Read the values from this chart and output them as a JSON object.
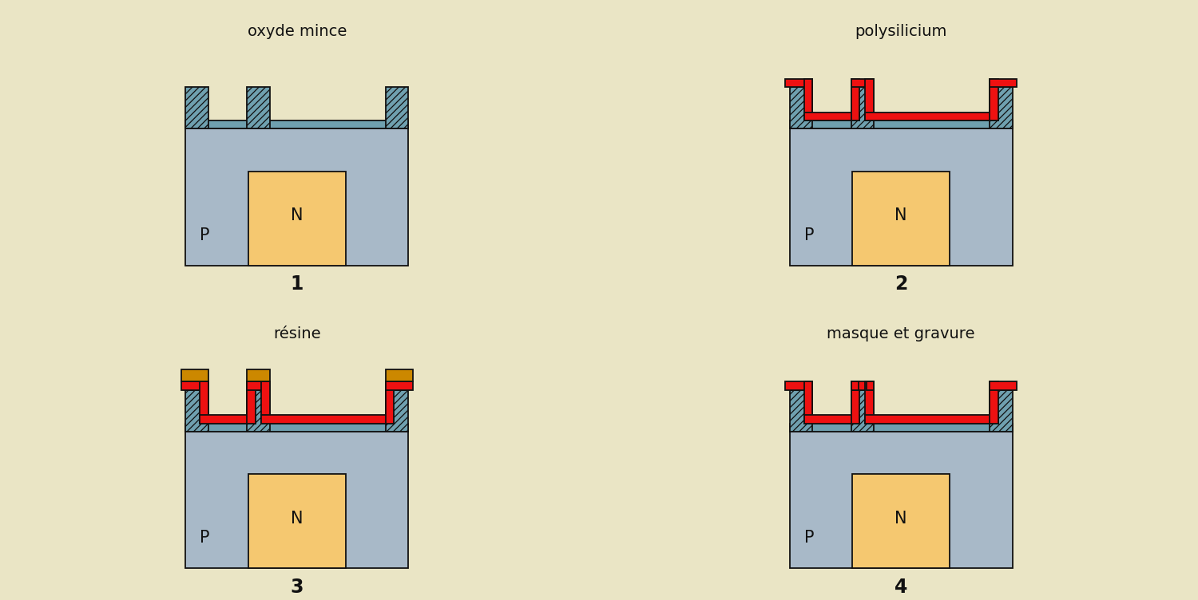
{
  "bg_color": "#EAE5C5",
  "p_color": "#A8B9C8",
  "n_color": "#F5C870",
  "oxide_color": "#6FA0AF",
  "red_color": "#EE1111",
  "resin_color": "#CC8800",
  "outline_color": "#111111",
  "hatch_color": "#2A4A5A",
  "labels": [
    "oxyde mince",
    "polysilicium",
    "résine",
    "masque et gravure"
  ],
  "numbers": [
    "1",
    "2",
    "3",
    "4"
  ]
}
